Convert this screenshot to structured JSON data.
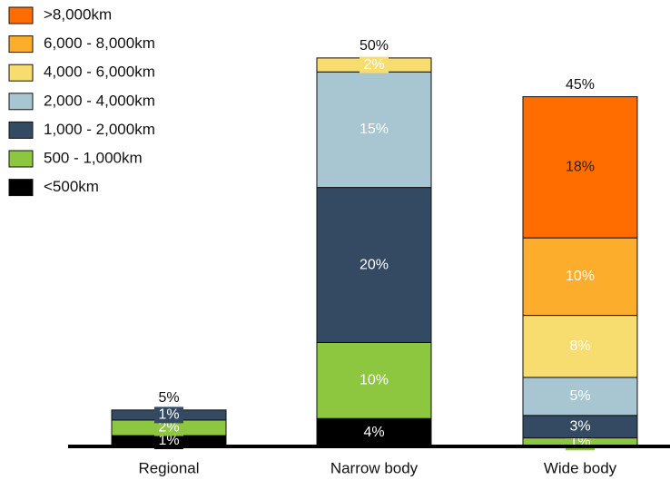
{
  "chart_data": {
    "type": "stacked_bar",
    "categories": [
      "Regional",
      "Narrow body",
      "Wide body"
    ],
    "series": [
      {
        "name": "<500km",
        "color": "#000000",
        "label_color": "#ffffff",
        "values": [
          1.4,
          3.6,
          null
        ],
        "value_labels": [
          "1%",
          "4%",
          null
        ]
      },
      {
        "name": "500 - 1,000km",
        "color": "#8dc63f",
        "label_color": "#ffffff",
        "values": [
          2.0,
          9.8,
          1.1
        ],
        "value_labels": [
          "2%",
          "10%",
          "1%"
        ]
      },
      {
        "name": "1,000 - 2,000km",
        "color": "#344a63",
        "label_color": "#ffffff",
        "values": [
          1.3,
          20.0,
          2.9
        ],
        "value_labels": [
          "1%",
          "20%",
          "3%"
        ]
      },
      {
        "name": "2,000 - 4,000km",
        "color": "#a7c6d2",
        "label_color": "#ffffff",
        "values": [
          null,
          14.9,
          4.9
        ],
        "value_labels": [
          null,
          "15%",
          "5%"
        ]
      },
      {
        "name": "4,000 - 6,000km",
        "color": "#f7dc6f",
        "label_color": "#ffffff",
        "values": [
          null,
          1.8,
          8.0
        ],
        "value_labels": [
          null,
          "2%",
          "8%"
        ]
      },
      {
        "name": "6,000 - 8,000km",
        "color": "#fbad2b",
        "label_color": "#ffffff",
        "values": [
          null,
          null,
          10.0
        ],
        "value_labels": [
          null,
          null,
          "10%"
        ]
      },
      {
        "name": ">8,000km",
        "color": "#ff6d00",
        "label_color": "#222222",
        "values": [
          null,
          null,
          18.2
        ],
        "value_labels": [
          null,
          null,
          "18%"
        ]
      }
    ],
    "total_labels": [
      "5%",
      "50%",
      "45%"
    ],
    "ylim": [
      0,
      55
    ],
    "legend": "top-left"
  }
}
